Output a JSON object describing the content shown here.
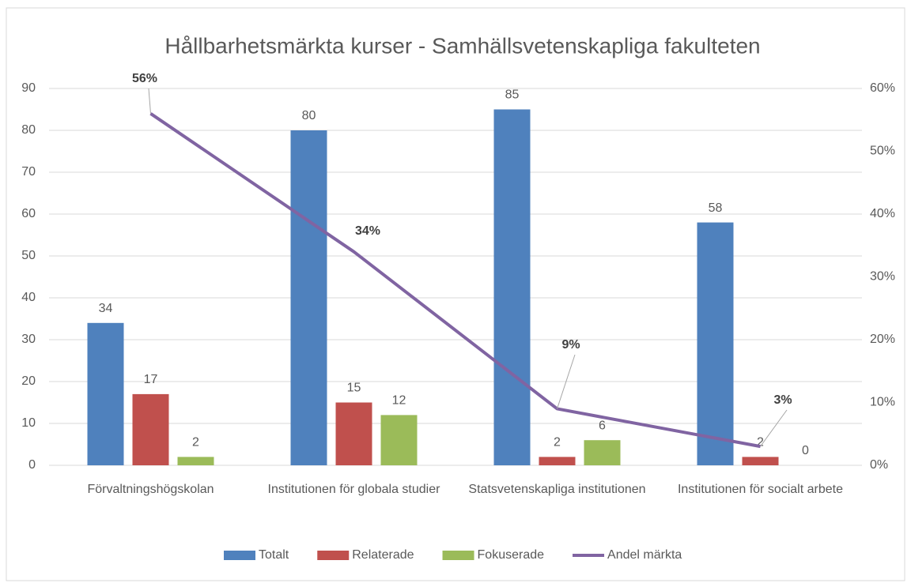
{
  "chart_data": {
    "type": "bar",
    "title": "Hållbarhetsmärkta kurser - Samhällsvetenskapliga fakulteten",
    "categories": [
      "Förvaltningshögskolan",
      "Institutionen för globala studier",
      "Statsvetenskapliga institutionen",
      "Institutionen för socialt arbete"
    ],
    "series": [
      {
        "name": "Totalt",
        "color": "#4f81bd",
        "values": [
          34,
          80,
          85,
          58
        ]
      },
      {
        "name": "Relaterade",
        "color": "#c0504d",
        "values": [
          17,
          15,
          2,
          2
        ]
      },
      {
        "name": "Fokuserade",
        "color": "#9bbb59",
        "values": [
          2,
          12,
          6,
          0
        ]
      },
      {
        "name": "Andel märkta",
        "color": "#8064a2",
        "type": "line",
        "axis": "y2",
        "values": [
          56,
          34,
          9,
          3
        ],
        "value_labels": [
          "56%",
          "34%",
          "9%",
          "3%"
        ]
      }
    ],
    "ylim": [
      0,
      90
    ],
    "yticks": [
      0,
      10,
      20,
      30,
      40,
      50,
      60,
      70,
      80,
      90
    ],
    "y2lim": [
      0,
      60
    ],
    "y2ticks": [
      {
        "value": 0,
        "label": "0%"
      },
      {
        "value": 10,
        "label": "10%"
      },
      {
        "value": 20,
        "label": "20%"
      },
      {
        "value": 30,
        "label": "30%"
      },
      {
        "value": 40,
        "label": "40%"
      },
      {
        "value": 50,
        "label": "50%"
      },
      {
        "value": 60,
        "label": "60%"
      }
    ],
    "grid": true,
    "legend": "bottom"
  }
}
